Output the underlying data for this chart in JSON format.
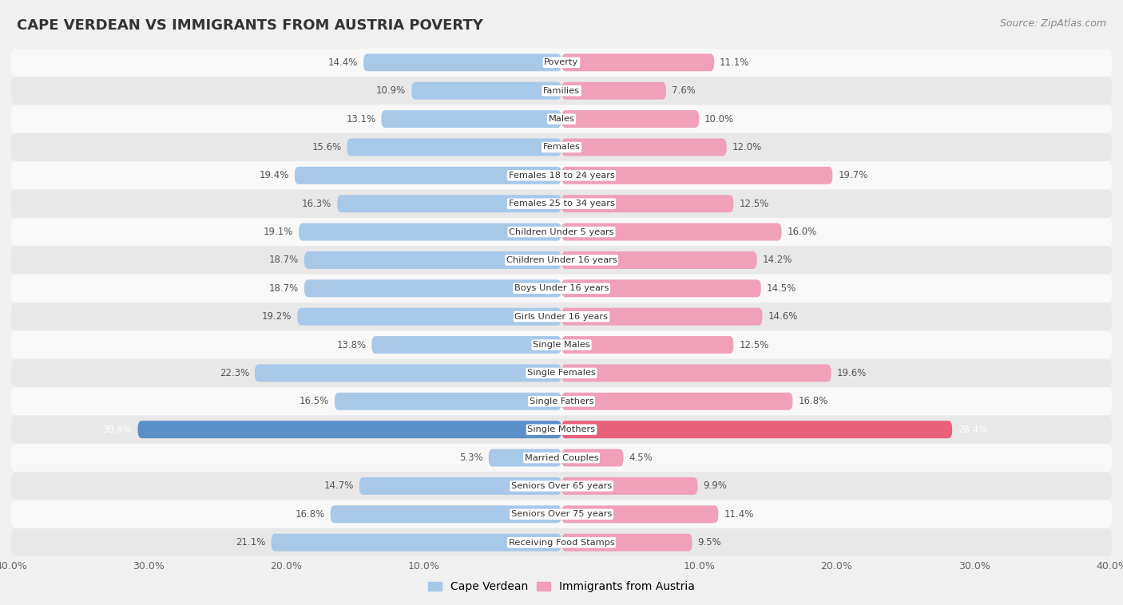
{
  "title": "CAPE VERDEAN VS IMMIGRANTS FROM AUSTRIA POVERTY",
  "source": "Source: ZipAtlas.com",
  "categories": [
    "Poverty",
    "Families",
    "Males",
    "Females",
    "Females 18 to 24 years",
    "Females 25 to 34 years",
    "Children Under 5 years",
    "Children Under 16 years",
    "Boys Under 16 years",
    "Girls Under 16 years",
    "Single Males",
    "Single Females",
    "Single Fathers",
    "Single Mothers",
    "Married Couples",
    "Seniors Over 65 years",
    "Seniors Over 75 years",
    "Receiving Food Stamps"
  ],
  "cape_verdean": [
    14.4,
    10.9,
    13.1,
    15.6,
    19.4,
    16.3,
    19.1,
    18.7,
    18.7,
    19.2,
    13.8,
    22.3,
    16.5,
    30.8,
    5.3,
    14.7,
    16.8,
    21.1
  ],
  "austria": [
    11.1,
    7.6,
    10.0,
    12.0,
    19.7,
    12.5,
    16.0,
    14.2,
    14.5,
    14.6,
    12.5,
    19.6,
    16.8,
    28.4,
    4.5,
    9.9,
    11.4,
    9.5
  ],
  "cape_verdean_color": "#a8c8e8",
  "austria_color": "#f0a0b8",
  "highlight_row_cv": "#5b8fc7",
  "highlight_row_at": "#e8607a",
  "background_color": "#f0f0f0",
  "row_color_light": "#f8f8f8",
  "row_color_dark": "#e8e8e8",
  "xlim": 40.0,
  "legend_cv": "Cape Verdean",
  "legend_at": "Immigrants from Austria"
}
